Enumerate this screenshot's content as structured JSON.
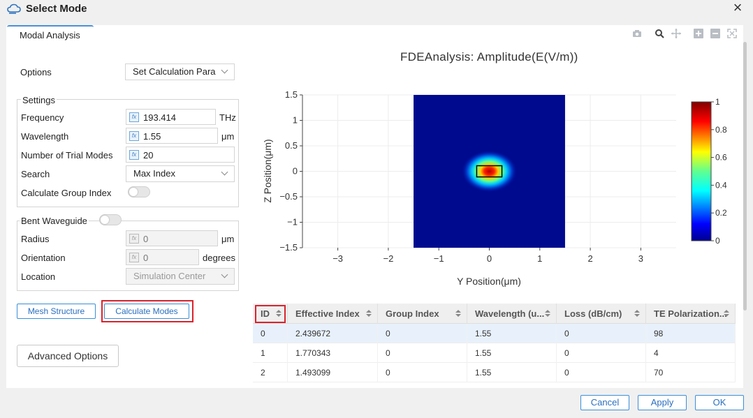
{
  "window": {
    "title": "Select Mode"
  },
  "tab": {
    "label": "Modal Analysis"
  },
  "options": {
    "label": "Options",
    "value": "Set Calculation Para"
  },
  "settings": {
    "legend": "Settings",
    "frequency": {
      "label": "Frequency",
      "value": "193.414",
      "unit": "THz"
    },
    "wavelength": {
      "label": "Wavelength",
      "value": "1.55",
      "unit": "μm"
    },
    "trial_modes": {
      "label": "Number of Trial Modes",
      "value": "20"
    },
    "search": {
      "label": "Search",
      "value": "Max Index"
    },
    "group_index": {
      "label": "Calculate Group Index"
    }
  },
  "bent": {
    "label": "Bent Waveguide",
    "radius": {
      "label": "Radius",
      "value": "0",
      "unit": "μm"
    },
    "orientation": {
      "label": "Orientation",
      "value": "0",
      "unit": "degrees"
    },
    "location": {
      "label": "Location",
      "value": "Simulation Center"
    }
  },
  "buttons": {
    "mesh": "Mesh Structure",
    "calc": "Calculate Modes",
    "advanced": "Advanced Options"
  },
  "chart_data": {
    "type": "heatmap",
    "title": "FDEAnalysis: Amplitude(E(V/m))",
    "xlabel": "Y Position(μm)",
    "ylabel": "Z Position(μm)",
    "xlim": [
      -3.7,
      3.7
    ],
    "ylim": [
      -1.5,
      1.5
    ],
    "xticks": [
      "−3",
      "−2",
      "−1",
      "0",
      "1",
      "2",
      "3"
    ],
    "yticks": [
      "1.5",
      "1",
      "0.5",
      "0",
      "−0.5",
      "−1",
      "−1.5"
    ],
    "field_region": {
      "y": [
        -1.5,
        1.5
      ],
      "z": [
        -1.5,
        1.5
      ]
    },
    "mode_peak": {
      "y": 0,
      "z": 0,
      "value": 1
    },
    "waveguide_core": {
      "y": [
        -0.25,
        0.25
      ],
      "z": [
        -0.11,
        0.11
      ]
    },
    "colorbar": {
      "min": 0,
      "max": 1,
      "ticks": [
        "1",
        "0.8",
        "0.6",
        "0.4",
        "0.2",
        "0"
      ]
    }
  },
  "colors": {
    "accent": "#3b8fd9",
    "highlight": "#d9232d",
    "field_bg": "#000a8f"
  },
  "table": {
    "headers": [
      "ID",
      "Effective Index",
      "Group Index",
      "Wavelength (u...",
      "Loss (dB/cm)",
      "TE Polarization..."
    ],
    "rows": [
      [
        "0",
        "2.439672",
        "0",
        "1.55",
        "0",
        "98"
      ],
      [
        "1",
        "1.770343",
        "0",
        "1.55",
        "0",
        "4"
      ],
      [
        "2",
        "1.493099",
        "0",
        "1.55",
        "0",
        "70"
      ]
    ]
  },
  "footer": {
    "cancel": "Cancel",
    "apply": "Apply",
    "ok": "OK"
  }
}
